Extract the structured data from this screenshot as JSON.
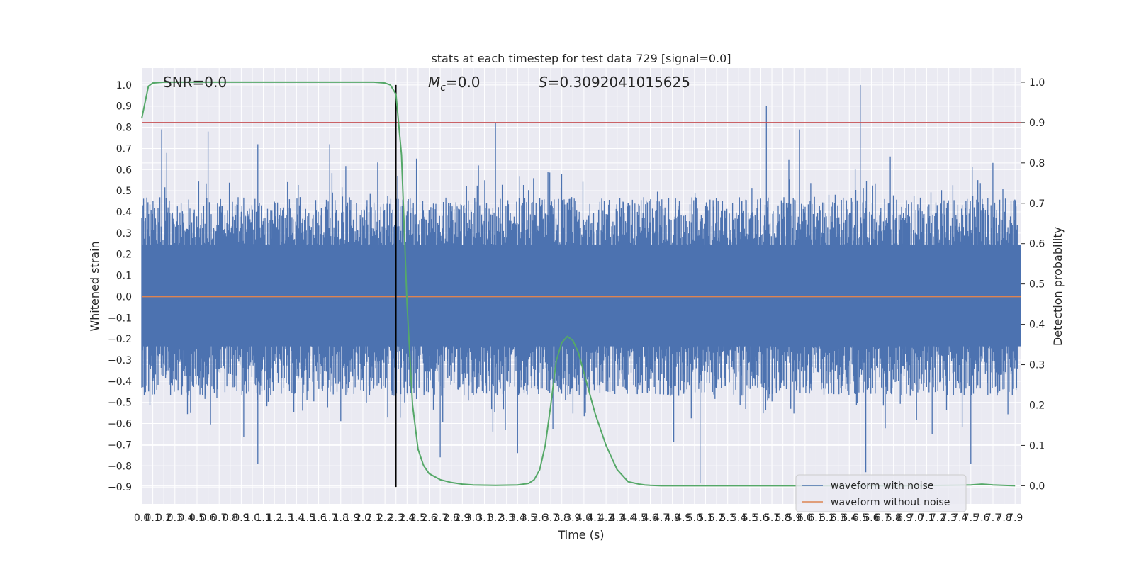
{
  "chart_data": {
    "type": "line",
    "title": "stats at each timestep for test data 729 [signal=0.0]",
    "xlabel": "Time (s)",
    "ylabel": "Whitened strain",
    "y2label": "Detection probability",
    "xlim": [
      0.0,
      7.95
    ],
    "ylim": [
      -0.98,
      1.08
    ],
    "y2lim": [
      -0.045,
      1.035
    ],
    "x_ticks": [
      "0.0",
      "0.1",
      "0.2",
      "0.3",
      "0.4",
      "0.5",
      "0.6",
      "0.7",
      "0.8",
      "0.9",
      "1.0",
      "1.1",
      "1.2",
      "1.3",
      "1.4",
      "1.5",
      "1.6",
      "1.7",
      "1.8",
      "1.9",
      "2.0",
      "2.1",
      "2.2",
      "2.3",
      "2.4",
      "2.5",
      "2.6",
      "2.7",
      "2.8",
      "2.9",
      "3.0",
      "3.1",
      "3.2",
      "3.3",
      "3.4",
      "3.5",
      "3.6",
      "3.7",
      "3.8",
      "3.9",
      "4.0",
      "4.1",
      "4.2",
      "4.3",
      "4.4",
      "4.5",
      "4.6",
      "4.7",
      "4.8",
      "4.9",
      "5.0",
      "5.1",
      "5.2",
      "5.3",
      "5.4",
      "5.5",
      "5.6",
      "5.7",
      "5.8",
      "5.9",
      "6.0",
      "6.1",
      "6.2",
      "6.3",
      "6.4",
      "6.5",
      "6.6",
      "6.7",
      "6.8",
      "6.9",
      "7.0",
      "7.1",
      "7.2",
      "7.3",
      "7.4",
      "7.5",
      "7.6",
      "7.7",
      "7.8",
      "7.9"
    ],
    "y_ticks": [
      "1.0",
      "0.9",
      "0.8",
      "0.7",
      "0.6",
      "0.5",
      "0.4",
      "0.3",
      "0.2",
      "0.1",
      "0.0",
      "-0.1",
      "-0.2",
      "-0.3",
      "-0.4",
      "-0.5",
      "-0.6",
      "-0.7",
      "-0.8",
      "-0.9"
    ],
    "y2_ticks": [
      "1.0",
      "0.9",
      "0.8",
      "0.7",
      "0.6",
      "0.5",
      "0.4",
      "0.3",
      "0.2",
      "0.1",
      "0.0"
    ],
    "annotations": {
      "snr": "SNR=0.0",
      "mc_symbol": "M",
      "mc_sub": "c",
      "mc_value": "=0.0",
      "s_symbol": "S",
      "s_value": "=0.3092041015625"
    },
    "series": [
      {
        "name": "waveform with noise",
        "color": "#4c72b0",
        "noise_envelope": {
          "typical_peak": 0.45,
          "max": 1.0,
          "min": -0.88
        },
        "spikes": [
          {
            "x": 0.18,
            "y": 0.79
          },
          {
            "x": 0.6,
            "y": 0.78
          },
          {
            "x": 1.05,
            "y": 0.72
          },
          {
            "x": 1.7,
            "y": 0.72
          },
          {
            "x": 3.2,
            "y": 0.82
          },
          {
            "x": 5.65,
            "y": 0.9
          },
          {
            "x": 5.95,
            "y": 0.79
          },
          {
            "x": 6.5,
            "y": 1.0
          },
          {
            "x": 1.05,
            "y": -0.79
          },
          {
            "x": 3.4,
            "y": -0.74
          },
          {
            "x": 5.05,
            "y": -0.88
          },
          {
            "x": 6.55,
            "y": -0.83
          },
          {
            "x": 7.5,
            "y": -0.79
          },
          {
            "x": 2.7,
            "y": -0.76
          }
        ]
      },
      {
        "name": "waveform without noise",
        "color": "#dd8452",
        "x": [
          0.0,
          7.95
        ],
        "y": [
          0.0,
          0.0
        ]
      },
      {
        "name": "Detection probability",
        "color": "#55a868",
        "axis": "right",
        "x": [
          0.0,
          0.06,
          0.1,
          0.2,
          0.5,
          1.0,
          1.5,
          2.0,
          2.1,
          2.2,
          2.25,
          2.3,
          2.35,
          2.4,
          2.45,
          2.5,
          2.55,
          2.6,
          2.7,
          2.8,
          2.9,
          3.0,
          3.2,
          3.4,
          3.5,
          3.55,
          3.6,
          3.65,
          3.7,
          3.75,
          3.8,
          3.85,
          3.9,
          3.95,
          4.0,
          4.05,
          4.1,
          4.2,
          4.3,
          4.4,
          4.5,
          4.55,
          4.6,
          4.7,
          5.0,
          6.0,
          7.0,
          7.5,
          7.6,
          7.7,
          7.9
        ],
        "y": [
          0.91,
          0.99,
          0.998,
          1.0,
          1.0,
          1.0,
          1.0,
          1.0,
          1.0,
          0.998,
          0.993,
          0.97,
          0.82,
          0.45,
          0.2,
          0.09,
          0.05,
          0.03,
          0.015,
          0.008,
          0.004,
          0.002,
          0.001,
          0.002,
          0.006,
          0.015,
          0.04,
          0.1,
          0.2,
          0.31,
          0.355,
          0.37,
          0.36,
          0.33,
          0.28,
          0.23,
          0.18,
          0.1,
          0.04,
          0.01,
          0.004,
          0.002,
          0.001,
          0.0,
          0.0,
          0.0,
          0.0,
          0.002,
          0.004,
          0.002,
          0.0
        ]
      }
    ],
    "threshold": {
      "axis": "right",
      "y": 0.9,
      "color": "#c44e52"
    },
    "marker_line": {
      "x": 2.3,
      "y_from": -0.9,
      "y_to": 1.0,
      "color": "#000000"
    },
    "legend": {
      "placement": "lower-right",
      "entries": [
        "waveform with noise",
        "waveform without noise"
      ]
    },
    "grid": true,
    "background": "#eaeaf2"
  }
}
